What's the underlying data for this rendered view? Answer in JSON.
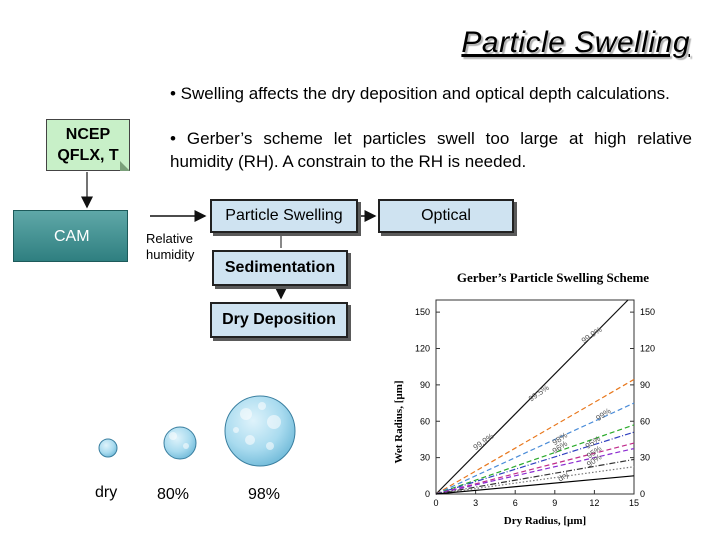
{
  "title": "Particle Swelling",
  "bullets": [
    "• Swelling affects the dry deposition and optical depth calculations.",
    "• Gerber’s scheme let particles swell too large at high relative humidity (RH). A constrain to the RH is needed."
  ],
  "note": {
    "line1": "NCEP",
    "line2": "QFLX, T"
  },
  "flow": {
    "cam": "CAM",
    "relative_humidity": [
      "Relative",
      "humidity"
    ],
    "particle_swelling": "Particle Swelling",
    "optical": "Optical",
    "sedimentation": "Sedimentation",
    "dry_deposition": "Dry Deposition"
  },
  "particles": [
    "dry",
    "80%",
    "98%"
  ],
  "colors": {
    "box_fill": "#cfe3f1",
    "cam_fill": "#3a8e8f",
    "note_fill": "#c8f0c8",
    "particle": "#a6d8ee"
  },
  "chart_data": {
    "type": "line",
    "title": "Gerber’s Particle Swelling Scheme",
    "xlabel": "Dry Radius, [µm]",
    "ylabel": "Wet Radius, [µm]",
    "xlim": [
      0,
      15
    ],
    "ylim": [
      0,
      160
    ],
    "xticks": [
      "0",
      "3",
      "6",
      "9",
      "12",
      "15"
    ],
    "yticks": [
      "0",
      "30",
      "60",
      "90",
      "120",
      "150"
    ],
    "grid": false,
    "series": [
      {
        "name": "99.9%",
        "color": "#111111",
        "style": "solid",
        "slope": 11.0
      },
      {
        "name": "99.5%",
        "color": "#e8781e",
        "style": "dashed",
        "slope": 6.3
      },
      {
        "name": "99%",
        "color": "#4a8cd8",
        "style": "dashed",
        "slope": 5.0
      },
      {
        "name": "98%",
        "color": "#2aaa2a",
        "style": "dashed",
        "slope": 3.8
      },
      {
        "name": "98%",
        "color": "#3040c0",
        "style": "dashdot",
        "slope": 3.4
      },
      {
        "name": "96%",
        "color": "#c02a8a",
        "style": "dashed",
        "slope": 2.8
      },
      {
        "name": "95%",
        "color": "#8a2ad0",
        "style": "dashed",
        "slope": 2.5
      },
      {
        "name": "90%",
        "color": "#333333",
        "style": "dashdot",
        "slope": 1.9
      },
      {
        "name": "80%",
        "color": "#777777",
        "style": "dotted",
        "slope": 1.5
      },
      {
        "name": "dry",
        "color": "#000000",
        "style": "solid",
        "slope": 1.0
      }
    ],
    "line_labels": [
      {
        "text": "99.9%",
        "x": 11.2,
        "y": 124
      },
      {
        "text": "99.5%",
        "x": 7.2,
        "y": 76
      },
      {
        "text": "99.9%",
        "x": 3.0,
        "y": 36
      },
      {
        "text": "99%",
        "x": 12.3,
        "y": 60
      },
      {
        "text": "98%",
        "x": 9.0,
        "y": 40
      },
      {
        "text": "95%",
        "x": 11.5,
        "y": 37
      },
      {
        "text": "96%",
        "x": 9.0,
        "y": 33
      },
      {
        "text": "95%",
        "x": 11.6,
        "y": 29
      },
      {
        "text": "90%",
        "x": 11.6,
        "y": 22
      },
      {
        "text": "dry",
        "x": 9.4,
        "y": 10
      }
    ]
  }
}
